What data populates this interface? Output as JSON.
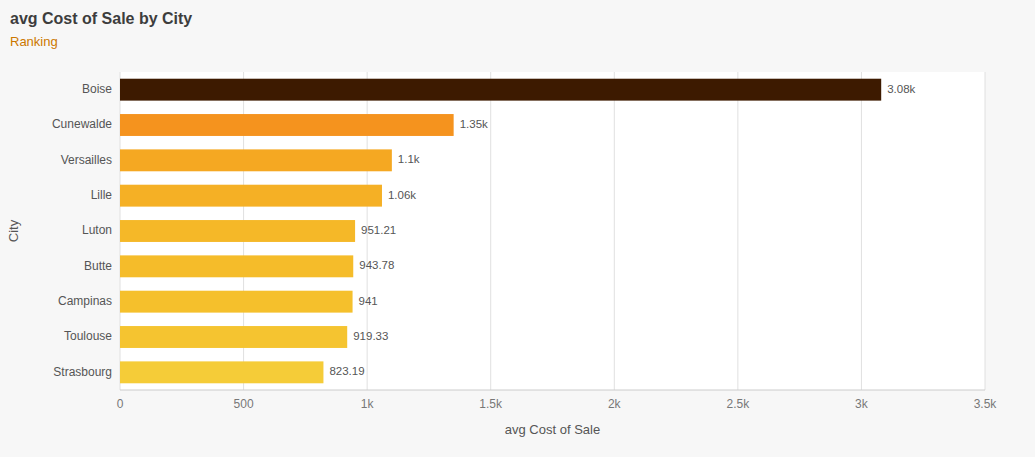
{
  "chart_data": {
    "type": "bar",
    "orientation": "horizontal",
    "title": "avg Cost of Sale by City",
    "subtitle": "Ranking",
    "xlabel": "avg Cost of Sale",
    "ylabel": "City",
    "categories": [
      "Boise",
      "Cunewalde",
      "Versailles",
      "Lille",
      "Luton",
      "Butte",
      "Campinas",
      "Toulouse",
      "Strasbourg"
    ],
    "values": [
      3080,
      1350,
      1100,
      1060,
      951.21,
      943.78,
      941,
      919.33,
      823.19
    ],
    "value_labels": [
      "3.08k",
      "1.35k",
      "1.1k",
      "1.06k",
      "951.21",
      "943.78",
      "941",
      "919.33",
      "823.19"
    ],
    "data_labels": true,
    "colors": [
      "#3d1a00",
      "#f5931e",
      "#f5a822",
      "#f5b025",
      "#f5b828",
      "#f5bc2a",
      "#f5c02c",
      "#f5c430",
      "#f5cc38"
    ],
    "xlim": [
      0,
      3500
    ],
    "xticks": [
      0,
      500,
      {
        "value": 1000,
        "label": "1k"
      },
      {
        "value": 1500,
        "label": "1.5k"
      },
      {
        "value": 2000,
        "label": "2k"
      },
      {
        "value": 2500,
        "label": "2.5k"
      },
      {
        "value": 3000,
        "label": "3k"
      },
      {
        "value": 3500,
        "label": "3.5k"
      }
    ],
    "grid": true
  }
}
